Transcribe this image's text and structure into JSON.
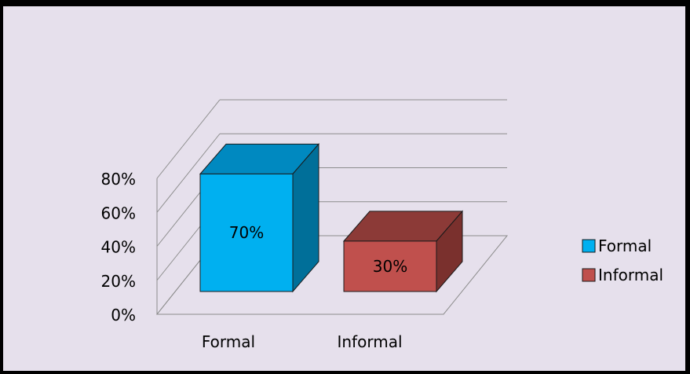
{
  "chart_data": {
    "type": "bar",
    "categories": [
      "Formal",
      "Informal"
    ],
    "values": [
      70,
      30
    ],
    "data_labels": [
      "70%",
      "30%"
    ],
    "title": "",
    "xlabel": "",
    "ylabel": "",
    "ylim": [
      0,
      80
    ],
    "y_ticks": [
      0,
      20,
      40,
      60,
      80
    ],
    "y_tick_labels": [
      "0%",
      "20%",
      "40%",
      "60%",
      "80%"
    ],
    "grid": true,
    "three_d": true,
    "legend": {
      "position": "right",
      "items": [
        {
          "label": "Formal",
          "color": "#00b0f0"
        },
        {
          "label": "Informal",
          "color": "#c0504d"
        }
      ]
    },
    "colors": {
      "Formal": {
        "front": "#00b0f0",
        "top": "#0089c0",
        "side": "#006f99"
      },
      "Informal": {
        "front": "#c0504d",
        "top": "#8c3a37",
        "side": "#7a302d"
      }
    },
    "background": "#e6e0ec"
  }
}
